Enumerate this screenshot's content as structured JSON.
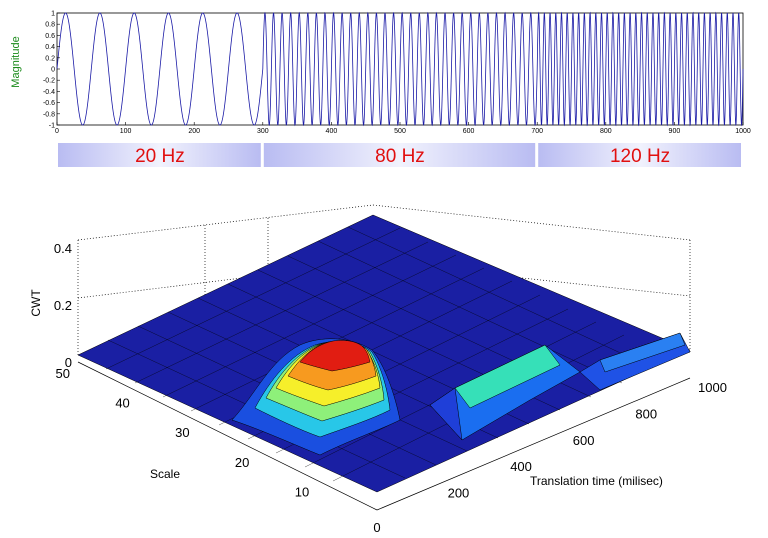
{
  "chart_data": [
    {
      "type": "line",
      "ylabel": "Magnitude",
      "xlim": [
        0,
        1000
      ],
      "ylim": [
        -1,
        1
      ],
      "x_ticks": [
        "0",
        "100",
        "200",
        "300",
        "400",
        "500",
        "600",
        "700",
        "800",
        "900",
        "1000"
      ],
      "y_ticks": [
        "1",
        "0.8",
        "0.6",
        "0.4",
        "0.2",
        "0",
        "-0.2",
        "-0.4",
        "-0.6",
        "-0.8",
        "-1"
      ],
      "series": [
        {
          "segments": [
            {
              "x_start": 0,
              "x_end": 300,
              "frequency_hz": 20
            },
            {
              "x_start": 300,
              "x_end": 700,
              "frequency_hz": 80
            },
            {
              "x_start": 700,
              "x_end": 1000,
              "frequency_hz": 120
            }
          ],
          "amplitude": 1,
          "color": "#1a1aa6"
        }
      ],
      "bands": [
        {
          "label": "20 Hz",
          "x_start": 0,
          "x_end": 300
        },
        {
          "label": "80 Hz",
          "x_start": 300,
          "x_end": 700
        },
        {
          "label": "120 Hz",
          "x_start": 700,
          "x_end": 1000
        }
      ]
    },
    {
      "type": "surface",
      "xlabel": "Translation time (milisec)",
      "ylabel": "Scale",
      "zlabel": "CWT",
      "xlim": [
        0,
        1000
      ],
      "ylim": [
        0,
        50
      ],
      "zlim": [
        0,
        0.45
      ],
      "x_ticks": [
        "200",
        "400",
        "600",
        "800",
        "1000"
      ],
      "y_ticks": [
        "10",
        "20",
        "30",
        "40",
        "50"
      ],
      "z_ticks": [
        "0",
        "0.2",
        "0.4"
      ],
      "y_axis_zero_label": "0",
      "colormap": "jet",
      "peaks": [
        {
          "time_ms": 150,
          "scale": 35,
          "cwt": 0.43
        },
        {
          "time_ms": 500,
          "scale": 12,
          "cwt": 0.18
        },
        {
          "time_ms": 850,
          "scale": 8,
          "cwt": 0.12
        }
      ]
    }
  ]
}
